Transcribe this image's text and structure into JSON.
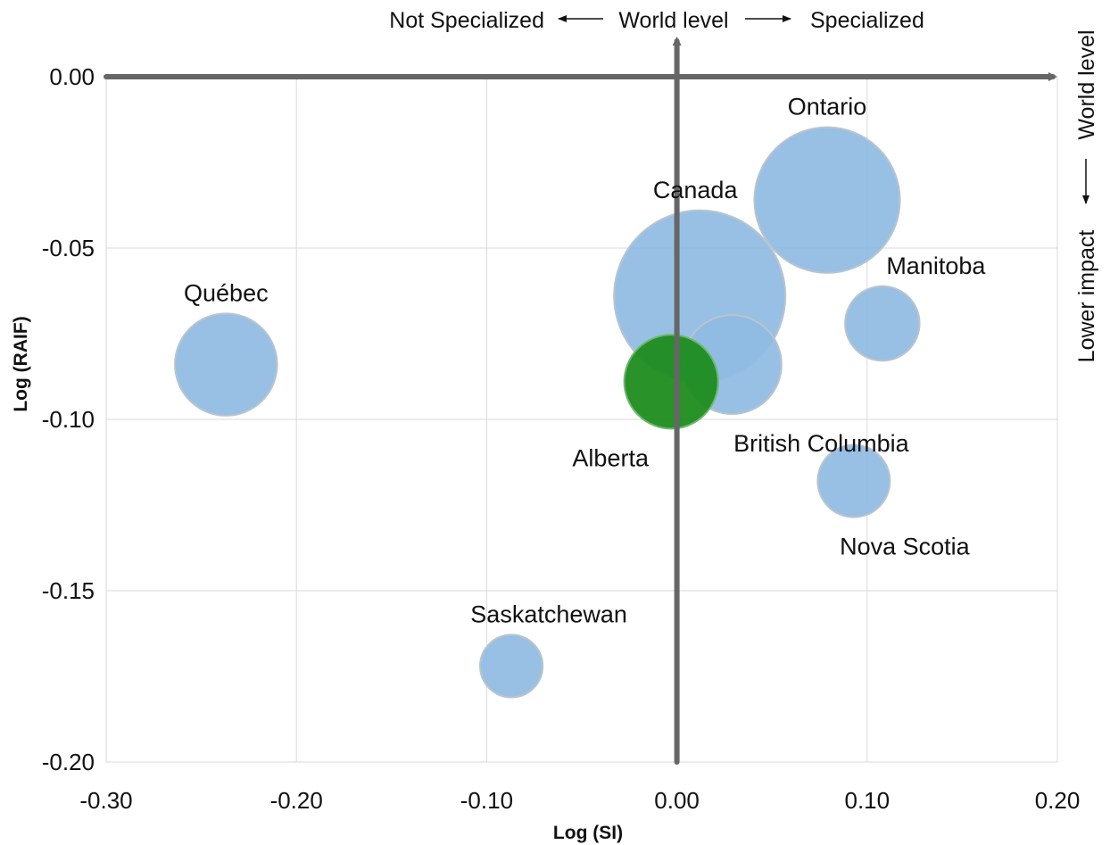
{
  "chart_data": {
    "type": "scatter",
    "xlabel": "Log (SI)",
    "ylabel": "Log (RAIF)",
    "xlim": [
      -0.3,
      0.2
    ],
    "ylim": [
      -0.2,
      0.0
    ],
    "x_ticks": [
      "-0.30",
      "-0.20",
      "-0.10",
      "0.00",
      "0.10",
      "0.20"
    ],
    "y_ticks": [
      "0.00",
      "-0.05",
      "-0.10",
      "-0.15",
      "-0.20"
    ],
    "grid": true,
    "annotations": {
      "top_left": "Not Specialized",
      "top_center": "World level",
      "top_right": "Specialized",
      "right_top": "World level",
      "right_bottom": "Lower impact"
    },
    "default_color": "#8fbbe2",
    "highlight_color": "#1e8c1e",
    "points": [
      {
        "name": "Canada",
        "x": 0.012,
        "y": -0.064,
        "size": 9.0
      },
      {
        "name": "Ontario",
        "x": 0.079,
        "y": -0.036,
        "size": 6.5
      },
      {
        "name": "Québec",
        "x": -0.237,
        "y": -0.084,
        "size": 3.2
      },
      {
        "name": "British Columbia",
        "x": 0.029,
        "y": -0.084,
        "size": 3.0
      },
      {
        "name": "Alberta",
        "x": -0.003,
        "y": -0.089,
        "size": 2.7,
        "highlight": true
      },
      {
        "name": "Manitoba",
        "x": 0.108,
        "y": -0.072,
        "size": 1.7
      },
      {
        "name": "Nova Scotia",
        "x": 0.093,
        "y": -0.118,
        "size": 1.6
      },
      {
        "name": "Saskatchewan",
        "x": -0.087,
        "y": -0.172,
        "size": 1.2
      }
    ]
  }
}
